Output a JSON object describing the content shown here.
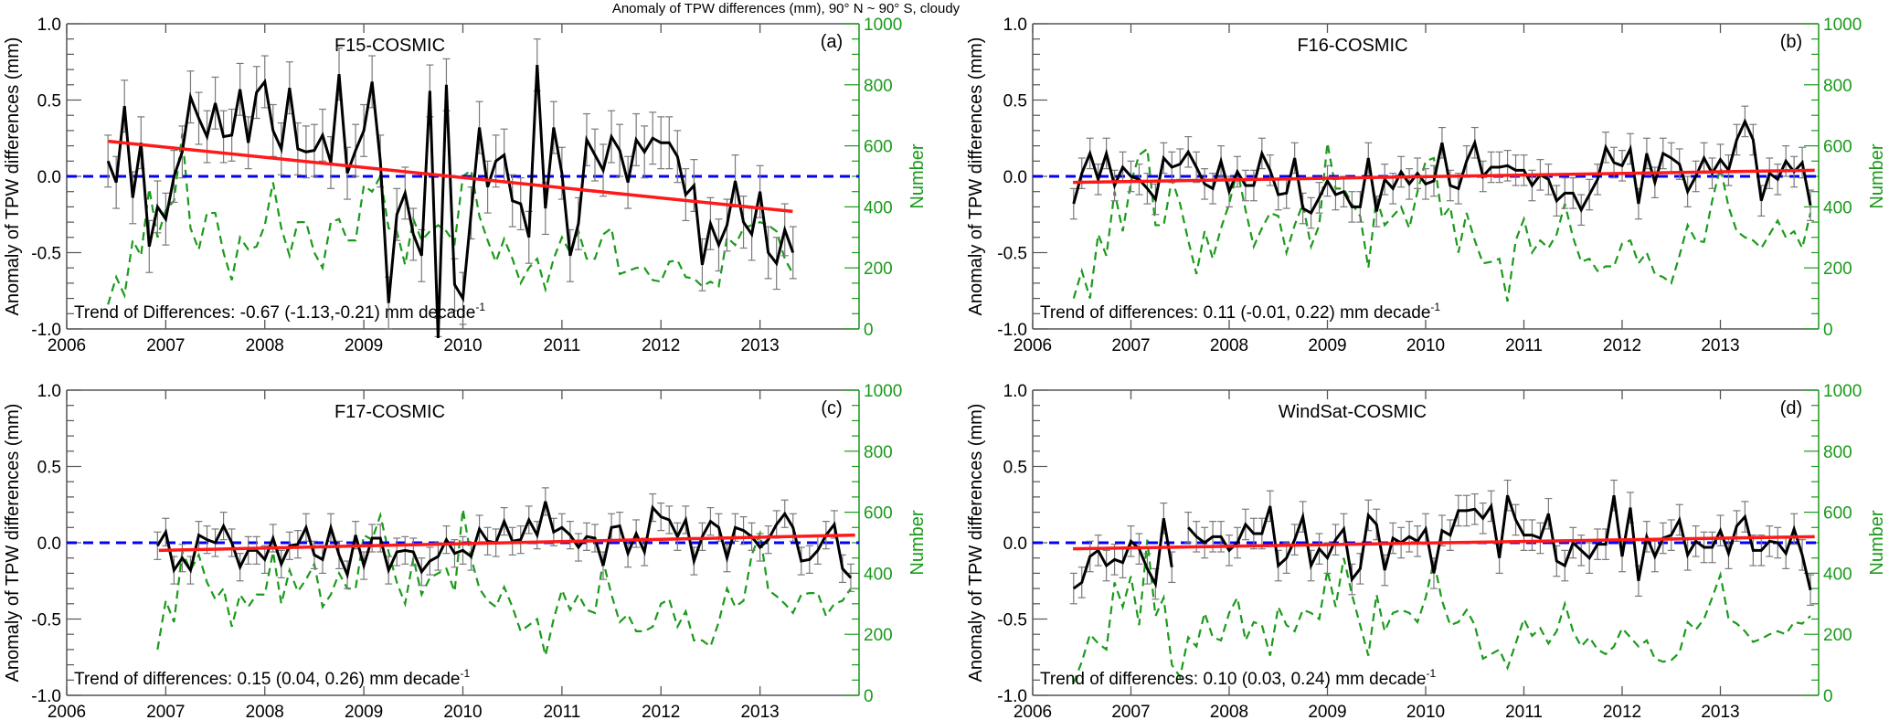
{
  "title": "Anomaly of TPW differences (mm), 90° N ~ 90° S, cloudy",
  "colors": {
    "anomaly": "#000000",
    "error_bar": "#7a7a7a",
    "trend": "#ff1a1a",
    "zero_line": "#0000ff",
    "number": "#1a9a1a"
  },
  "chart_data": [
    {
      "type": "line",
      "panel_label": "(a)",
      "title": "F15-COSMIC",
      "ylabel": "Anomaly of TPW differences (mm)",
      "y2label": "Number",
      "trend_text": "Trend of Differences: -0.67 (-1.13,-0.21) mm decade",
      "trend_exp": "-1",
      "xlim": [
        2006,
        2014
      ],
      "ylim": [
        -1,
        1
      ],
      "y2lim": [
        0,
        1000
      ],
      "xticks": [
        "2006",
        "2007",
        "2008",
        "2009",
        "2010",
        "2011",
        "2012",
        "2013"
      ],
      "yticks": [
        "-1.0",
        "-0.5",
        "0.0",
        "0.5",
        "1.0"
      ],
      "y2ticks": [
        "0",
        "200",
        "400",
        "600",
        "800",
        "1000"
      ],
      "start": [
        2006,
        6
      ],
      "anomaly": [
        0.1,
        -0.04,
        0.46,
        -0.14,
        0.22,
        -0.46,
        -0.2,
        -0.28,
        0.0,
        0.16,
        0.52,
        0.38,
        0.26,
        0.48,
        0.26,
        0.27,
        0.57,
        0.22,
        0.55,
        0.62,
        0.3,
        0.18,
        0.58,
        0.18,
        0.16,
        0.17,
        0.27,
        0.09,
        0.67,
        0.02,
        0.17,
        0.3,
        0.62,
        0.1,
        -0.83,
        -0.25,
        -0.11,
        -0.38,
        -0.52,
        0.56,
        -1.1,
        0.6,
        -0.71,
        -0.8,
        -0.24,
        0.32,
        -0.07,
        0.1,
        0.14,
        -0.16,
        -0.18,
        -0.4,
        0.73,
        -0.21,
        0.32,
        0.02,
        -0.52,
        -0.31,
        0.24,
        0.14,
        0.04,
        0.26,
        0.17,
        -0.04,
        0.24,
        0.16,
        0.25,
        0.22,
        0.22,
        0.13,
        -0.12,
        -0.06,
        -0.58,
        -0.31,
        -0.45,
        -0.32,
        -0.03,
        -0.3,
        -0.38,
        -0.1,
        -0.5,
        -0.57,
        -0.35,
        -0.5
      ],
      "number": [
        80,
        170,
        110,
        290,
        240,
        460,
        300,
        390,
        420,
        640,
        330,
        260,
        380,
        380,
        250,
        160,
        300,
        260,
        270,
        340,
        480,
        330,
        240,
        350,
        350,
        250,
        200,
        350,
        360,
        290,
        290,
        470,
        450,
        500,
        330,
        320,
        210,
        360,
        290,
        320,
        340,
        320,
        280,
        500,
        520,
        370,
        290,
        220,
        295,
        230,
        150,
        200,
        230,
        130,
        230,
        300,
        250,
        320,
        230,
        230,
        310,
        330,
        180,
        190,
        200,
        200,
        160,
        155,
        220,
        225,
        170,
        165,
        140,
        155,
        140,
        300,
        275,
        330,
        340,
        350,
        340,
        320,
        230,
        180
      ],
      "error_halfwidth": 0.17,
      "trend": {
        "x": [
          2006.42,
          2013.33
        ],
        "y": [
          0.23,
          -0.23
        ]
      },
      "reference_value": 0
    },
    {
      "type": "line",
      "panel_label": "(b)",
      "title": "F16-COSMIC",
      "ylabel": "Anomaly of TPW differences (mm)",
      "y2label": "Number",
      "trend_text": "Trend of differences: 0.11 (-0.01, 0.22) mm decade",
      "trend_exp": "-1",
      "xlim": [
        2006,
        2014
      ],
      "ylim": [
        -1,
        1
      ],
      "y2lim": [
        0,
        1000
      ],
      "xticks": [
        "2006",
        "2007",
        "2008",
        "2009",
        "2010",
        "2011",
        "2012",
        "2013"
      ],
      "yticks": [
        "-1.0",
        "-0.5",
        "0.0",
        "0.5",
        "1.0"
      ],
      "y2ticks": [
        "0",
        "200",
        "400",
        "600",
        "800",
        "1000"
      ],
      "start": [
        2006,
        6
      ],
      "anomaly": [
        -0.18,
        0.02,
        0.15,
        -0.02,
        0.15,
        -0.06,
        0.06,
        0.0,
        -0.02,
        -0.08,
        -0.15,
        0.12,
        0.06,
        0.08,
        0.16,
        0.06,
        -0.05,
        -0.08,
        0.1,
        -0.1,
        0.03,
        -0.06,
        -0.06,
        0.15,
        0.04,
        -0.12,
        -0.11,
        0.12,
        -0.21,
        -0.24,
        -0.14,
        -0.03,
        -0.12,
        -0.1,
        -0.2,
        -0.2,
        0.12,
        -0.23,
        -0.02,
        -0.08,
        0.03,
        -0.05,
        0.02,
        -0.05,
        -0.03,
        0.22,
        -0.06,
        -0.08,
        0.1,
        0.22,
        0.0,
        0.06,
        0.06,
        0.07,
        0.04,
        0.04,
        -0.06,
        0.01,
        -0.02,
        -0.16,
        -0.11,
        -0.11,
        -0.22,
        -0.12,
        -0.02,
        0.19,
        0.09,
        0.07,
        0.18,
        -0.18,
        0.15,
        -0.04,
        0.15,
        0.12,
        0.08,
        -0.1,
        0.0,
        0.12,
        0.02,
        0.11,
        0.04,
        0.24,
        0.36,
        0.24,
        -0.16,
        0.02,
        -0.02,
        0.1,
        0.03,
        0.09,
        -0.19
      ],
      "number": [
        100,
        190,
        100,
        310,
        240,
        450,
        320,
        480,
        570,
        590,
        340,
        340,
        490,
        410,
        290,
        180,
        320,
        230,
        330,
        410,
        520,
        390,
        270,
        330,
        380,
        370,
        250,
        340,
        410,
        270,
        340,
        610,
        460,
        460,
        410,
        370,
        200,
        430,
        340,
        370,
        400,
        330,
        450,
        550,
        560,
        365,
        400,
        250,
        380,
        290,
        215,
        220,
        230,
        90,
        290,
        360,
        250,
        290,
        265,
        310,
        410,
        300,
        220,
        230,
        190,
        205,
        205,
        280,
        290,
        215,
        250,
        180,
        170,
        150,
        240,
        340,
        290,
        285,
        420,
        530,
        400,
        320,
        300,
        290,
        265,
        310,
        355,
        300,
        320,
        265,
        380
      ],
      "error_halfwidth": 0.1,
      "trend": {
        "x": [
          2006.41,
          2013.96
        ],
        "y": [
          -0.04,
          0.04
        ]
      },
      "reference_value": 0
    },
    {
      "type": "line",
      "panel_label": "(c)",
      "title": "F17-COSMIC",
      "ylabel": "Anomaly of TPW differences (mm)",
      "y2label": "Number",
      "trend_text": "Trend of differences: 0.15 (0.04, 0.26) mm decade",
      "trend_exp": "-1",
      "xlim": [
        2006,
        2014
      ],
      "ylim": [
        -1,
        1
      ],
      "y2lim": [
        0,
        1000
      ],
      "xticks": [
        "2006",
        "2007",
        "2008",
        "2009",
        "2010",
        "2011",
        "2012",
        "2013"
      ],
      "yticks": [
        "-1.0",
        "-0.5",
        "0.0",
        "0.5",
        "1.0"
      ],
      "y2ticks": [
        "0",
        "200",
        "400",
        "600",
        "800",
        "1000"
      ],
      "start": [
        2006,
        12
      ],
      "anomaly": [
        -0.02,
        0.07,
        -0.18,
        -0.1,
        -0.18,
        0.05,
        0.02,
        0.0,
        0.11,
        0.0,
        -0.16,
        -0.05,
        -0.05,
        -0.11,
        0.03,
        -0.14,
        -0.02,
        -0.01,
        0.1,
        -0.08,
        -0.11,
        0.1,
        -0.08,
        -0.21,
        0.05,
        -0.15,
        0.03,
        0.03,
        -0.18,
        -0.06,
        -0.05,
        -0.06,
        -0.19,
        -0.12,
        -0.09,
        0.02,
        -0.07,
        -0.05,
        -0.09,
        0.09,
        0.01,
        0.0,
        0.14,
        0.01,
        0.02,
        0.15,
        0.05,
        0.27,
        0.07,
        0.1,
        0.05,
        -0.03,
        0.04,
        0.03,
        -0.15,
        0.1,
        0.11,
        -0.07,
        0.06,
        -0.06,
        0.23,
        0.17,
        0.15,
        0.04,
        0.15,
        -0.12,
        0.04,
        0.14,
        0.1,
        -0.1,
        0.1,
        0.08,
        0.04,
        -0.03,
        0.02,
        0.12,
        0.19,
        0.1,
        -0.12,
        -0.11,
        -0.05,
        0.05,
        0.12,
        -0.17,
        -0.23
      ],
      "number": [
        150,
        310,
        240,
        470,
        410,
        460,
        370,
        315,
        350,
        225,
        330,
        290,
        330,
        330,
        470,
        300,
        410,
        340,
        380,
        430,
        290,
        330,
        400,
        350,
        350,
        525,
        510,
        590,
        470,
        370,
        300,
        450,
        330,
        385,
        400,
        415,
        340,
        610,
        450,
        350,
        310,
        290,
        355,
        290,
        210,
        230,
        250,
        130,
        250,
        345,
        280,
        330,
        280,
        270,
        440,
        330,
        240,
        265,
        210,
        210,
        225,
        300,
        315,
        225,
        275,
        180,
        180,
        160,
        240,
        350,
        290,
        310,
        460,
        530,
        345,
        325,
        300,
        270,
        330,
        335,
        335,
        260,
        300,
        310,
        350
      ],
      "error_halfwidth": 0.09,
      "trend": {
        "x": [
          2006.93,
          2013.96
        ],
        "y": [
          -0.05,
          0.05
        ]
      },
      "reference_value": 0
    },
    {
      "type": "line",
      "panel_label": "(d)",
      "title": "WindSat-COSMIC",
      "ylabel": "Anomaly of TPW differences (mm)",
      "y2label": "Number",
      "trend_text": "Trend of differences: 0.10 (0.03, 0.24) mm decade",
      "trend_exp": "-1",
      "xlim": [
        2006,
        2014
      ],
      "ylim": [
        -1,
        1
      ],
      "y2lim": [
        0,
        1000
      ],
      "xticks": [
        "2006",
        "2007",
        "2008",
        "2009",
        "2010",
        "2011",
        "2012",
        "2013"
      ],
      "yticks": [
        "-1.0",
        "-0.5",
        "0.0",
        "0.5",
        "1.0"
      ],
      "y2ticks": [
        "0",
        "200",
        "400",
        "600",
        "800",
        "1000"
      ],
      "start": [
        2006,
        6
      ],
      "anomaly": [
        -0.3,
        -0.26,
        -0.09,
        -0.05,
        -0.15,
        -0.11,
        -0.13,
        0.01,
        -0.04,
        -0.17,
        -0.27,
        0.16,
        -0.16,
        null,
        0.1,
        0.04,
        0.0,
        0.04,
        0.04,
        -0.05,
        0.0,
        0.12,
        0.06,
        0.06,
        0.24,
        -0.15,
        -0.1,
        0.02,
        0.17,
        -0.15,
        -0.04,
        -0.1,
        0.02,
        0.09,
        -0.24,
        -0.17,
        0.18,
        0.12,
        -0.18,
        0.03,
        0.0,
        0.04,
        0.01,
        0.09,
        -0.2,
        0.08,
        0.05,
        0.21,
        0.21,
        0.22,
        0.16,
        0.24,
        -0.1,
        0.31,
        0.15,
        0.05,
        0.05,
        0.03,
        0.19,
        -0.12,
        -0.15,
        0.0,
        -0.05,
        -0.1,
        -0.01,
        -0.01,
        0.31,
        -0.09,
        0.23,
        -0.25,
        0.04,
        -0.09,
        0.03,
        0.05,
        0.15,
        -0.08,
        0.01,
        -0.03,
        -0.03,
        0.08,
        -0.07,
        0.11,
        0.17,
        -0.05,
        -0.05,
        0.01,
        0.0,
        -0.07,
        0.09,
        -0.08,
        -0.31
      ],
      "number": [
        40,
        110,
        200,
        170,
        150,
        370,
        290,
        390,
        230,
        510,
        260,
        320,
        100,
        60,
        190,
        160,
        270,
        190,
        180,
        270,
        320,
        180,
        240,
        230,
        130,
        290,
        230,
        210,
        280,
        270,
        250,
        410,
        290,
        450,
        330,
        230,
        130,
        330,
        210,
        270,
        280,
        270,
        240,
        320,
        440,
        310,
        230,
        240,
        280,
        230,
        120,
        135,
        150,
        90,
        170,
        250,
        195,
        220,
        170,
        210,
        300,
        210,
        160,
        190,
        150,
        135,
        160,
        220,
        190,
        160,
        180,
        120,
        110,
        115,
        140,
        240,
        215,
        250,
        320,
        395,
        250,
        235,
        210,
        175,
        185,
        200,
        210,
        200,
        240,
        235,
        260
      ],
      "error_halfwidth": 0.1,
      "trend": {
        "x": [
          2006.41,
          2013.96
        ],
        "y": [
          -0.04,
          0.04
        ]
      },
      "reference_value": 0
    }
  ]
}
